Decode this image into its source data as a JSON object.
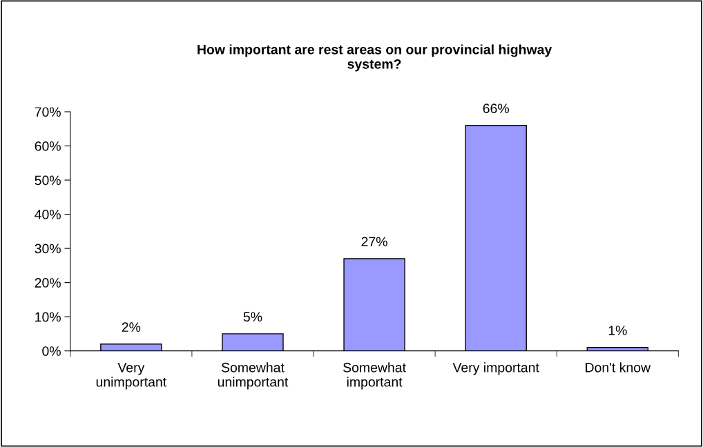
{
  "chart_data": {
    "type": "bar",
    "title": "How important are rest areas on our provincial highway\nsystem?",
    "categories": [
      "Very\nunimportant",
      "Somewhat\nunimportant",
      "Somewhat\nimportant",
      "Very important",
      "Don't know"
    ],
    "values": [
      2,
      5,
      27,
      66,
      1
    ],
    "value_labels": [
      "2%",
      "5%",
      "27%",
      "66%",
      "1%"
    ],
    "color": "#9999ff",
    "ylim": [
      0,
      70
    ],
    "yticks": [
      {
        "value": 0,
        "label": "0%"
      },
      {
        "value": 10,
        "label": "10%"
      },
      {
        "value": 20,
        "label": "20%"
      },
      {
        "value": 30,
        "label": "30%"
      },
      {
        "value": 40,
        "label": "40%"
      },
      {
        "value": 50,
        "label": "50%"
      },
      {
        "value": 60,
        "label": "60%"
      },
      {
        "value": 70,
        "label": "70%"
      }
    ],
    "grid": false
  }
}
